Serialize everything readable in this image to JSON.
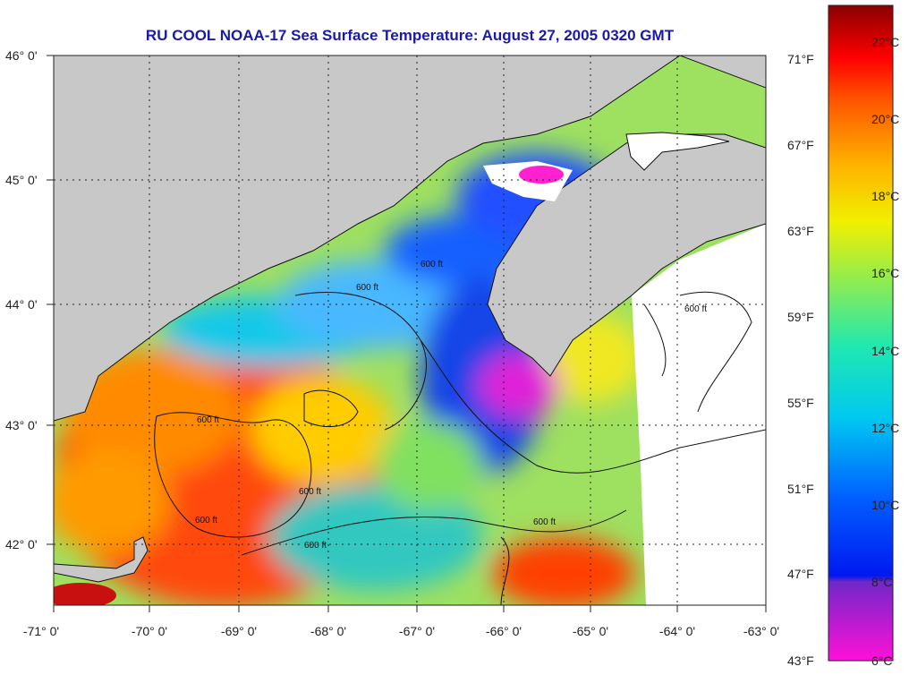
{
  "title": "RU COOL  NOAA-17  Sea Surface Temperature:  August 27, 2005 0320 GMT",
  "lat_labels": [
    "46° 0'",
    "45° 0'",
    "44° 0'",
    "43° 0'",
    "42° 0'"
  ],
  "lon_labels": [
    "-71° 0'",
    "-70° 0'",
    "-69° 0'",
    "-68° 0'",
    "-67° 0'",
    "-66° 0'",
    "-65° 0'",
    "-64° 0'",
    "-63° 0'"
  ],
  "contour_label": "600 ft",
  "colorbar": {
    "fahrenheit": [
      "71°F",
      "67°F",
      "63°F",
      "59°F",
      "55°F",
      "51°F",
      "47°F",
      "43°F"
    ],
    "celsius": [
      "22°C",
      "20°C",
      "18°C",
      "16°C",
      "14°C",
      "12°C",
      "10°C",
      "8°C",
      "6°C"
    ]
  },
  "colors": {
    "title": "#1a1aa8",
    "land": "#c8c8c8",
    "no_data": "#ffffff"
  }
}
